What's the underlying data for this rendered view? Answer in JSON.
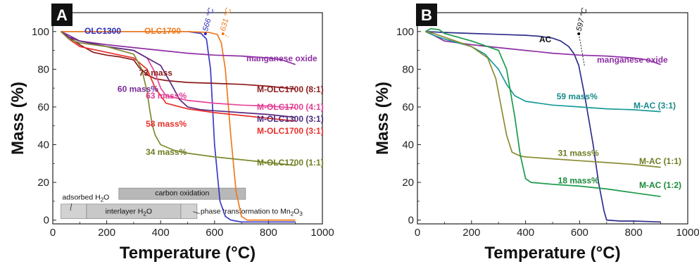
{
  "chart_data": [
    {
      "type": "line",
      "panel_label": "A",
      "xlabel": "Temperature (°C)",
      "ylabel": "Mass (%)",
      "xlim": [
        0,
        1000
      ],
      "ylim": [
        -2,
        110
      ],
      "xticks": [
        0,
        200,
        400,
        600,
        800,
        1000
      ],
      "yticks": [
        0,
        20,
        40,
        60,
        80,
        100
      ],
      "series": [
        {
          "name": "OLC1300",
          "color": "#3a3ac8",
          "label_color": "#2b2bbf",
          "x": [
            30,
            100,
            200,
            300,
            400,
            500,
            550,
            570,
            585,
            600,
            620,
            640,
            660,
            680,
            700,
            800,
            900
          ],
          "y": [
            100,
            100,
            100,
            100,
            100,
            100,
            99,
            96,
            80,
            40,
            10,
            2,
            0,
            -0.5,
            -1,
            -1,
            -1
          ]
        },
        {
          "name": "OLC1700",
          "color": "#f07a1a",
          "label_color": "#f07a1a",
          "x": [
            30,
            100,
            200,
            300,
            400,
            500,
            580,
            610,
            625,
            640,
            660,
            680,
            700,
            720,
            800,
            900
          ],
          "y": [
            100,
            100,
            100,
            100,
            100,
            100,
            99.5,
            98.5,
            94,
            80,
            45,
            15,
            2,
            0,
            0,
            0
          ]
        },
        {
          "name": "manganese oxide",
          "color": "#8e2fa3",
          "label_color": "#8e2fa3",
          "x": [
            30,
            60,
            100,
            200,
            300,
            400,
            500,
            600,
            700,
            800,
            850,
            900
          ],
          "y": [
            100,
            98,
            95,
            93,
            91.5,
            90,
            88.5,
            87.5,
            87,
            86,
            85,
            82.5
          ]
        },
        {
          "name": "M-OLC1700 (8:1)",
          "color": "#8b1a1a",
          "label_color": "#8b1a1a",
          "x": [
            30,
            60,
            100,
            150,
            200,
            250,
            300,
            320,
            350,
            380,
            420,
            500,
            600,
            700,
            800,
            900
          ],
          "y": [
            100,
            97,
            93,
            89,
            87.5,
            86.5,
            85,
            81,
            77,
            75,
            74,
            73,
            72.5,
            72,
            71,
            69.5
          ]
        },
        {
          "name": "M-OLC1700 (4:1)",
          "color": "#e8459a",
          "label_color": "#e23b93",
          "x": [
            30,
            60,
            100,
            200,
            300,
            350,
            380,
            400,
            420,
            500,
            600,
            700,
            800,
            900
          ],
          "y": [
            100,
            97,
            95,
            92,
            90,
            86,
            78,
            70,
            66,
            63.5,
            62,
            61,
            60.5,
            59.5
          ]
        },
        {
          "name": "M-OLC1300 (3:1)",
          "color": "#5a2a82",
          "label_color": "#4a2a7a",
          "x": [
            30,
            60,
            100,
            200,
            300,
            400,
            440,
            470,
            500,
            550,
            600,
            700,
            800,
            900
          ],
          "y": [
            100,
            97,
            95,
            92,
            90,
            82,
            72,
            64,
            60,
            58.5,
            58,
            57,
            56,
            54.5
          ]
        },
        {
          "name": "M-OLC1700 (3:1)",
          "color": "#e8302a",
          "label_color": "#e8302a",
          "x": [
            30,
            60,
            100,
            200,
            300,
            350,
            380,
            420,
            500,
            600,
            700,
            800,
            900
          ],
          "y": [
            100,
            96,
            92,
            89,
            86,
            80,
            70,
            62,
            59,
            57,
            55.5,
            54,
            52.5
          ]
        },
        {
          "name": "M-OLC1700 (1:1)",
          "color": "#7d8a2e",
          "label_color": "#6f7d22",
          "x": [
            30,
            60,
            100,
            200,
            300,
            330,
            350,
            360,
            370,
            380,
            400,
            450,
            500,
            600,
            700,
            800,
            900
          ],
          "y": [
            100,
            96,
            94,
            92,
            88,
            80,
            68,
            58,
            50,
            45,
            40,
            37,
            35.5,
            33.5,
            32,
            30.5,
            29
          ]
        }
      ],
      "annotations": [
        {
          "text": "566 °C",
          "x": 566,
          "color": "#2b2bbf"
        },
        {
          "text": "631 °C",
          "x": 631,
          "color": "#f07a1a"
        },
        {
          "text": "73 mass",
          "x": 320,
          "y": 76.5,
          "color": "#8b1a1a"
        },
        {
          "text": "60 mass%",
          "x": 240,
          "y": 68,
          "color": "#7a2a9a"
        },
        {
          "text": "63 mass%",
          "x": 345,
          "y": 64.5,
          "color": "#e23b93"
        },
        {
          "text": "58 mass%",
          "x": 345,
          "y": 49.5,
          "color": "#e8302a"
        },
        {
          "text": "34 mass%",
          "x": 345,
          "y": 34.5,
          "color": "#6f7d22"
        }
      ],
      "process_bands": [
        {
          "label": "carbon oxidation",
          "x0": 245,
          "x1": 715,
          "row": 1
        },
        {
          "label": "interlayer H2O",
          "x0": 125,
          "x1": 475,
          "row": 0
        },
        {
          "label": "adsorbed H2O",
          "x0": 30,
          "x1": 125,
          "row": 0
        },
        {
          "label": "phase transformation to Mn2O3",
          "x0": 475,
          "x1": 535,
          "row": 0
        }
      ]
    },
    {
      "type": "line",
      "panel_label": "B",
      "xlabel": "Temperature (°C)",
      "ylabel": "Mass (%)",
      "xlim": [
        0,
        1000
      ],
      "ylim": [
        -2,
        110
      ],
      "xticks": [
        0,
        200,
        400,
        600,
        800,
        1000
      ],
      "yticks": [
        0,
        20,
        40,
        60,
        80,
        100
      ],
      "series": [
        {
          "name": "AC",
          "color": "#2e2e8a",
          "label_color": "#111111",
          "x": [
            30,
            100,
            200,
            300,
            400,
            450,
            500,
            530,
            560,
            580,
            597,
            620,
            650,
            670,
            690,
            700,
            750,
            800,
            900
          ],
          "y": [
            100,
            99.5,
            99,
            98.5,
            98,
            97.5,
            96.5,
            95,
            92,
            88,
            82,
            65,
            40,
            20,
            5,
            0,
            -0.5,
            -0.5,
            -1
          ]
        },
        {
          "name": "manganese oxide",
          "color": "#8e2fa3",
          "label_color": "#8e2fa3",
          "x": [
            30,
            60,
            100,
            200,
            300,
            400,
            500,
            600,
            700,
            800,
            850,
            900
          ],
          "y": [
            100,
            98,
            95,
            93,
            91.5,
            90,
            88.5,
            87.5,
            87,
            86,
            85,
            82.5
          ]
        },
        {
          "name": "M-AC (3:1)",
          "color": "#1a9a9a",
          "label_color": "#1a8a8a",
          "x": [
            30,
            60,
            100,
            200,
            250,
            300,
            330,
            360,
            400,
            500,
            600,
            700,
            800,
            900
          ],
          "y": [
            100,
            98,
            96,
            92,
            88,
            80,
            72,
            66,
            63,
            61,
            60,
            59,
            58.5,
            57.5
          ]
        },
        {
          "name": "M-AC (1:1)",
          "color": "#8b8b32",
          "label_color": "#6f7d22",
          "x": [
            30,
            60,
            100,
            200,
            260,
            290,
            310,
            330,
            350,
            380,
            400,
            500,
            600,
            700,
            800,
            900
          ],
          "y": [
            100,
            99,
            97,
            92,
            86,
            75,
            60,
            45,
            36,
            34,
            33.5,
            32.5,
            31.5,
            30.5,
            29.5,
            28
          ]
        },
        {
          "name": "M-AC (1:2)",
          "color": "#1a9a4a",
          "label_color": "#1a8a3a",
          "x": [
            30,
            50,
            80,
            100,
            200,
            300,
            330,
            360,
            380,
            400,
            420,
            500,
            600,
            700,
            800,
            900
          ],
          "y": [
            100,
            101.5,
            101,
            99,
            95,
            90,
            80,
            55,
            35,
            22,
            20,
            19,
            18,
            16.5,
            14.5,
            12.5
          ]
        }
      ],
      "annotations": [
        {
          "text": "597 °C",
          "x": 597,
          "color": "#111111"
        },
        {
          "text": "59 mass%",
          "x": 515,
          "y": 64,
          "color": "#1a8a8a"
        },
        {
          "text": "31 mass%",
          "x": 520,
          "y": 34,
          "color": "#6f7d22"
        },
        {
          "text": "18 mass%",
          "x": 520,
          "y": 19.5,
          "color": "#1a8a3a"
        }
      ]
    }
  ]
}
